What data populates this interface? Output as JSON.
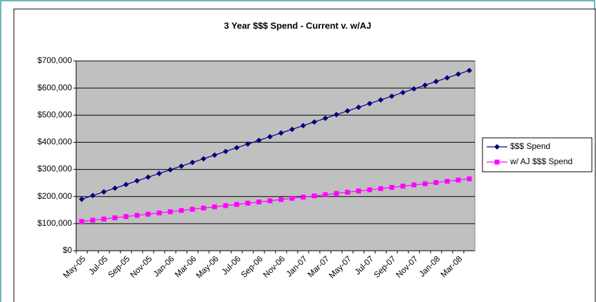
{
  "chart_data": {
    "type": "line",
    "title": "3 Year $$$ Spend - Current v. w/AJ",
    "categories": [
      "May-05",
      null,
      "Jul-05",
      null,
      "Sep-05",
      null,
      "Nov-05",
      null,
      "Jan-06",
      null,
      "Mar-06",
      null,
      "May-06",
      null,
      "Jul-06",
      null,
      "Sep-06",
      null,
      "Nov-06",
      null,
      "Jan-07",
      null,
      "Mar-07",
      null,
      "May-07",
      null,
      "Jul-07",
      null,
      "Sep-07",
      null,
      "Nov-07",
      null,
      "Jan-08",
      null,
      "Mar-08",
      null
    ],
    "series": [
      {
        "name": "$$$ Spend",
        "color": "#000080",
        "marker": "diamond",
        "values": [
          190000,
          203600,
          217100,
          230700,
          244300,
          257900,
          271400,
          285000,
          298600,
          312100,
          325700,
          339300,
          352800,
          366400,
          380000,
          393600,
          407100,
          420700,
          434300,
          447800,
          461400,
          475000,
          488500,
          502100,
          515700,
          529300,
          542800,
          556400,
          570000,
          583500,
          597100,
          610700,
          624200,
          637800,
          651400,
          665000
        ]
      },
      {
        "name": "w/ AJ $$$ Spend",
        "color": "#ff00ff",
        "marker": "square",
        "values": [
          108000,
          112500,
          117000,
          121500,
          126000,
          130500,
          134900,
          139400,
          143900,
          148400,
          152900,
          157400,
          161900,
          166400,
          170900,
          175400,
          179800,
          184300,
          188800,
          193300,
          197800,
          202300,
          206800,
          211300,
          215800,
          220300,
          224700,
          229200,
          233700,
          238200,
          242700,
          247200,
          251700,
          256200,
          260700,
          265200
        ]
      }
    ],
    "ylim": [
      0,
      700000
    ],
    "yticks": [
      {
        "value": 0,
        "label": "$0"
      },
      {
        "value": 100000,
        "label": "$100,000"
      },
      {
        "value": 200000,
        "label": "$200,000"
      },
      {
        "value": 300000,
        "label": "$300,000"
      },
      {
        "value": 400000,
        "label": "$400,000"
      },
      {
        "value": 500000,
        "label": "$500,000"
      },
      {
        "value": 600000,
        "label": "$600,000"
      },
      {
        "value": 700000,
        "label": "$700,000"
      }
    ],
    "grid": true,
    "legend": "right",
    "plot_background": "#c0c0c0"
  }
}
